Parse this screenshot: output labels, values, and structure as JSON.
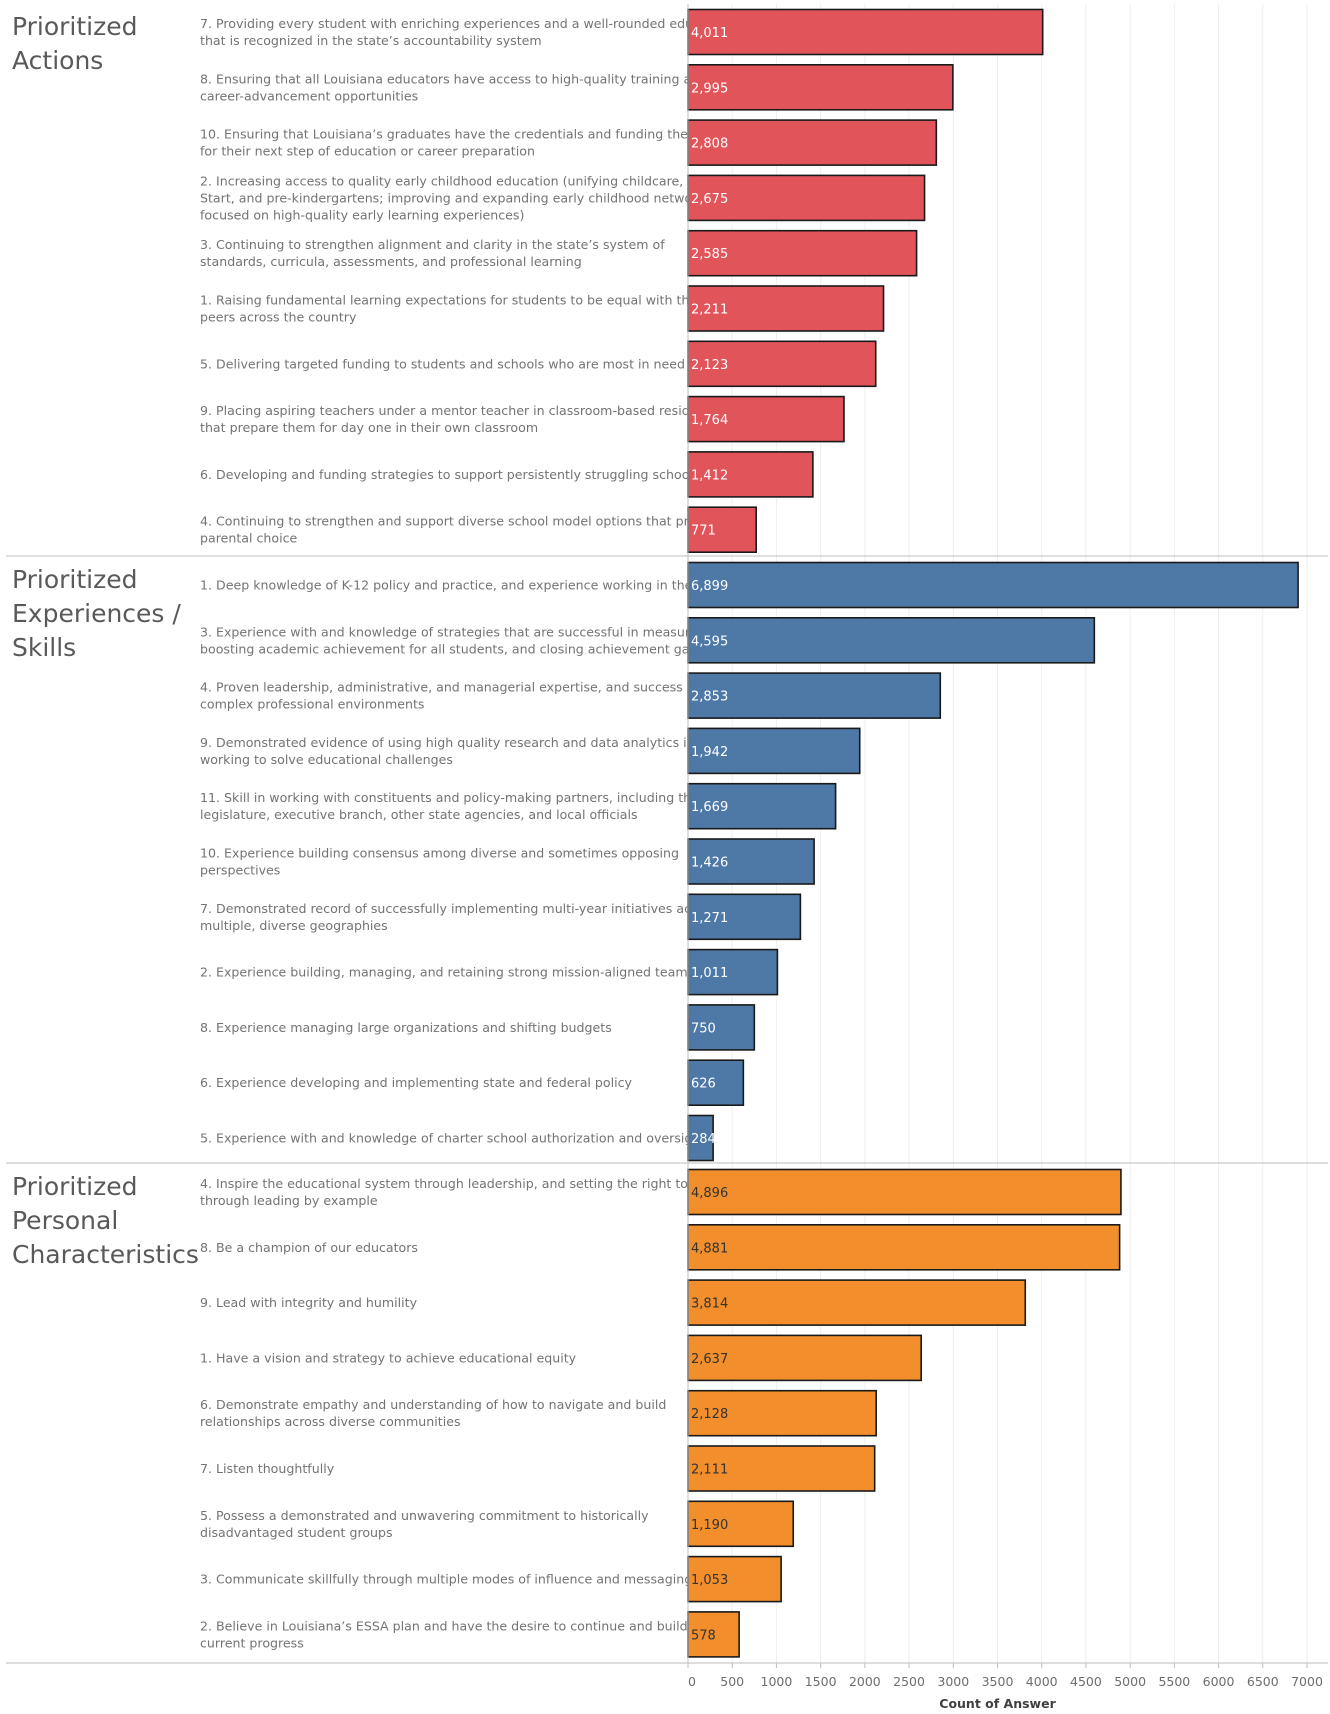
{
  "chart_data": {
    "type": "bar",
    "orientation": "horizontal",
    "xlabel": "Count of Answer",
    "xlim": [
      0,
      7000
    ],
    "xticks": [
      0,
      500,
      1000,
      1500,
      2000,
      2500,
      3000,
      3500,
      4000,
      4500,
      5000,
      5500,
      6000,
      6500,
      7000
    ],
    "grid": true,
    "panels": [
      {
        "title": [
          "Prioritized",
          "Actions"
        ],
        "color": "#e0545a",
        "label_color": "#ffffff",
        "rows": [
          {
            "label": [
              "7. Providing every student with enriching experiences and a well-rounded education",
              "that is recognized in the state’s accountability system"
            ],
            "value": 4011,
            "display": "4,011"
          },
          {
            "label": [
              "8. Ensuring that all Louisiana educators have access to high-quality training and",
              "career-advancement opportunities"
            ],
            "value": 2995,
            "display": "2,995"
          },
          {
            "label": [
              "10. Ensuring that Louisiana’s graduates have the credentials and funding they need",
              "for their next step of education or career preparation"
            ],
            "value": 2808,
            "display": "2,808"
          },
          {
            "label": [
              "2. Increasing access to quality early childhood education (unifying childcare, Head",
              "Start, and pre-kindergartens; improving and expanding early childhood networks",
              "focused on high-quality early learning experiences)"
            ],
            "value": 2675,
            "display": "2,675"
          },
          {
            "label": [
              "3. Continuing to strengthen alignment and clarity in the state’s system of",
              "standards, curricula, assessments, and professional learning"
            ],
            "value": 2585,
            "display": "2,585"
          },
          {
            "label": [
              "1. Raising fundamental learning expectations for students to be equal with their",
              "peers across the country"
            ],
            "value": 2211,
            "display": "2,211"
          },
          {
            "label": [
              "5. Delivering targeted funding to students and schools who are most in need"
            ],
            "value": 2123,
            "display": "2,123"
          },
          {
            "label": [
              "9. Placing aspiring teachers under a mentor teacher in classroom-based residencies",
              "that prepare them for day one in their own classroom"
            ],
            "value": 1764,
            "display": "1,764"
          },
          {
            "label": [
              "6. Developing and funding strategies to support persistently struggling schools"
            ],
            "value": 1412,
            "display": "1,412"
          },
          {
            "label": [
              "4. Continuing to strengthen and support diverse school model options that promote",
              "parental choice"
            ],
            "value": 771,
            "display": "771"
          }
        ]
      },
      {
        "title": [
          "Prioritized",
          "Experiences /",
          "Skills"
        ],
        "color": "#4e79a7",
        "label_color": "#ffffff",
        "rows": [
          {
            "label": [
              "1. Deep knowledge of K-12 policy and practice, and experience working in the field,"
            ],
            "value": 6899,
            "display": "6,899"
          },
          {
            "label": [
              "3. Experience with and knowledge of strategies that are successful in measurably",
              "boosting academic achievement for all students, and closing achievement gaps"
            ],
            "value": 4595,
            "display": "4,595"
          },
          {
            "label": [
              "4. Proven leadership, administrative, and managerial expertise, and success in",
              "complex professional environments"
            ],
            "value": 2853,
            "display": "2,853"
          },
          {
            "label": [
              "9. Demonstrated evidence of using high quality research and data analytics in",
              "working to solve educational challenges"
            ],
            "value": 1942,
            "display": "1,942"
          },
          {
            "label": [
              "11. Skill in working with constituents and policy-making partners, including the",
              "legislature, executive branch, other state agencies, and local officials"
            ],
            "value": 1669,
            "display": "1,669"
          },
          {
            "label": [
              "10. Experience building consensus among diverse and sometimes opposing",
              "perspectives"
            ],
            "value": 1426,
            "display": "1,426"
          },
          {
            "label": [
              "7. Demonstrated record of successfully implementing multi-year initiatives across",
              "multiple, diverse geographies"
            ],
            "value": 1271,
            "display": "1,271"
          },
          {
            "label": [
              "2. Experience building, managing, and retaining strong mission-aligned teams"
            ],
            "value": 1011,
            "display": "1,011"
          },
          {
            "label": [
              "8. Experience managing large organizations and shifting budgets"
            ],
            "value": 750,
            "display": "750"
          },
          {
            "label": [
              "6. Experience developing and implementing state and federal policy"
            ],
            "value": 626,
            "display": "626"
          },
          {
            "label": [
              "5. Experience with and knowledge of charter school authorization and oversight"
            ],
            "value": 284,
            "display": "284"
          }
        ]
      },
      {
        "title": [
          "Prioritized",
          "Personal",
          "Characteristics"
        ],
        "color": "#f28e2b",
        "label_color": "#333333",
        "rows": [
          {
            "label": [
              "4. Inspire the educational system through leadership, and setting the right tone",
              "through leading by example"
            ],
            "value": 4896,
            "display": "4,896"
          },
          {
            "label": [
              "8. Be a champion of our educators"
            ],
            "value": 4881,
            "display": "4,881"
          },
          {
            "label": [
              "9. Lead with integrity and humility"
            ],
            "value": 3814,
            "display": "3,814"
          },
          {
            "label": [
              "1. Have a vision and strategy to achieve educational equity"
            ],
            "value": 2637,
            "display": "2,637"
          },
          {
            "label": [
              "6. Demonstrate empathy and understanding  of how to navigate and build",
              "relationships across diverse communities"
            ],
            "value": 2128,
            "display": "2,128"
          },
          {
            "label": [
              "7. Listen thoughtfully"
            ],
            "value": 2111,
            "display": "2,111"
          },
          {
            "label": [
              "5. Possess a demonstrated and unwavering commitment to historically",
              "disadvantaged student groups"
            ],
            "value": 1190,
            "display": "1,190"
          },
          {
            "label": [
              "3. Communicate skillfully through multiple modes of influence and messaging,"
            ],
            "value": 1053,
            "display": "1,053"
          },
          {
            "label": [
              "2. Believe in Louisiana’s ESSA plan and have the desire to continue and build upon",
              "current progress"
            ],
            "value": 578,
            "display": "578"
          }
        ]
      }
    ]
  }
}
